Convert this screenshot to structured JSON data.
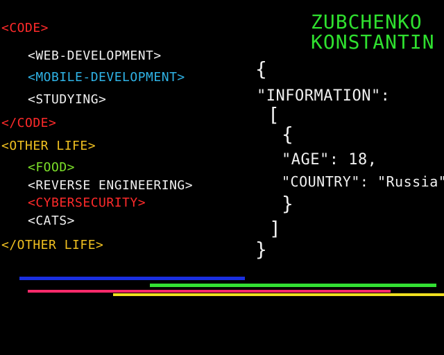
{
  "left": {
    "code_open": "<code>",
    "code_items": [
      "<web-development>",
      "<mobile-development>",
      "<studying>"
    ],
    "code_close": "</code>",
    "other_open": "<other life>",
    "other_items": [
      "<food>",
      "<reverse engineering>",
      "<cybersecurity>",
      "<cats>"
    ],
    "other_close": "</other life>"
  },
  "name": {
    "line1": "ZUBCHENKO",
    "line2": "KONSTANTIN"
  },
  "json_block": {
    "open_brace": "{",
    "information_key": "\"INFORMATION\":",
    "open_bracket": "[",
    "inner_open": "{",
    "age_line": "\"AGE\": 18,",
    "country_line": "\"COUNTRY\": \"Russia\"",
    "inner_close": "}",
    "close_bracket": "]",
    "close_brace": "}"
  },
  "colors": {
    "red": "#ff2a2a",
    "white": "#f0f0f0",
    "cyan": "#2fb3e6",
    "yellow": "#f0c020",
    "green": "#7ce02a",
    "name_green": "#2fe02f",
    "blue_bar": "#1a2fe0",
    "green_bar": "#33e033",
    "pink_bar": "#ff2a6a",
    "yellow_bar": "#f0e020"
  }
}
